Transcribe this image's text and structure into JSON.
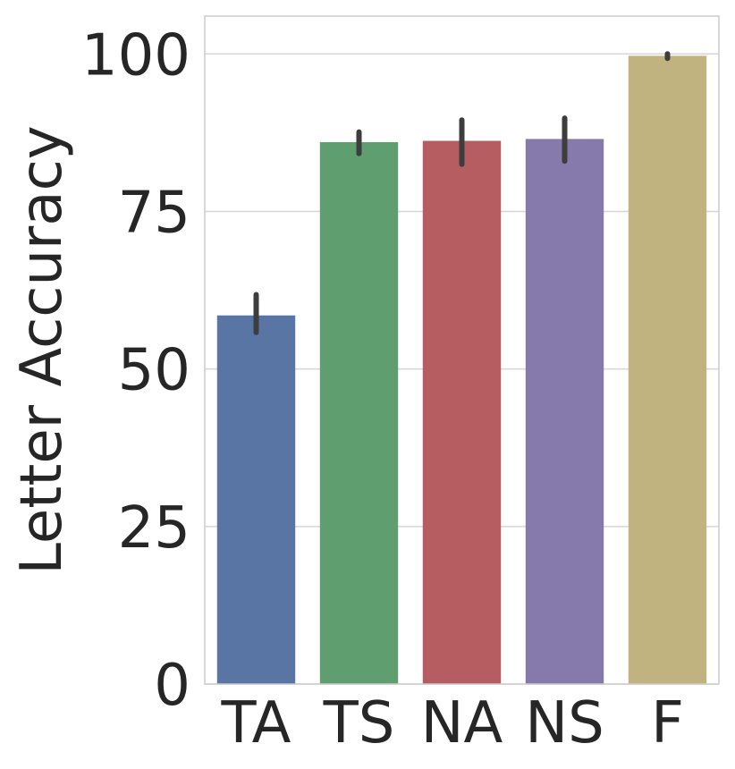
{
  "chart_data": {
    "type": "bar",
    "title": "",
    "xlabel": "",
    "ylabel": "Letter Accuracy",
    "categories": [
      "TA",
      "TS",
      "NA",
      "NS",
      "F"
    ],
    "values": [
      58.5,
      86.0,
      86.2,
      86.5,
      99.7
    ],
    "error_low": [
      55.8,
      84.2,
      82.5,
      83.0,
      99.3
    ],
    "error_high": [
      61.8,
      87.6,
      89.5,
      89.8,
      100.0
    ],
    "colors": [
      "#5975a4",
      "#5f9e6e",
      "#b55d60",
      "#857aab",
      "#c1b37f"
    ],
    "ylim": [
      0,
      106
    ],
    "yticks": [
      0,
      25,
      50,
      75,
      100
    ],
    "grid": true,
    "legend": "none"
  }
}
